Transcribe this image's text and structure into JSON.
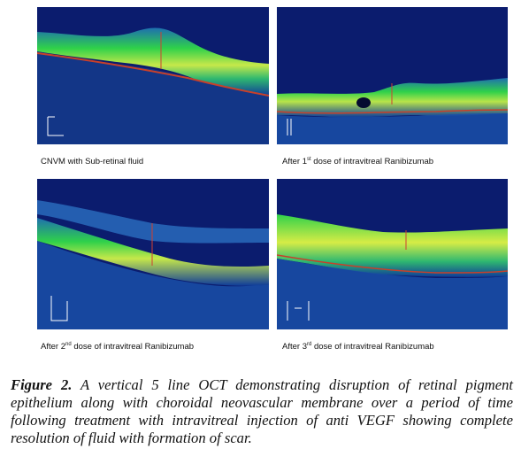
{
  "panels": [
    {
      "caption_pre": "CNVM with Sub-retinal fluid",
      "caption_sup": "",
      "caption_post": ""
    },
    {
      "caption_pre": "After 1",
      "caption_sup": "st",
      "caption_post": " dose of intravitreal Ranibizumab"
    },
    {
      "caption_pre": "After 2",
      "caption_sup": "nd",
      "caption_post": " dose of intravitreal Ranibizumab"
    },
    {
      "caption_pre": "After 3",
      "caption_sup": "rd",
      "caption_post": " dose of intravitreal Ranibizumab"
    }
  ],
  "figure": {
    "label": "Figure 2.",
    "text": " A vertical 5 line OCT demonstrating disruption of retinal pigment epithelium along with choroidal neovascular membrane over a period of time following treatment with intravitreal injection of anti VEGF showing complete resolution of fluid with formation of scar."
  },
  "colors": {
    "background": "#0b1c6e",
    "retina_green": "#2fd14a",
    "rpe_red": "#c8402a"
  }
}
